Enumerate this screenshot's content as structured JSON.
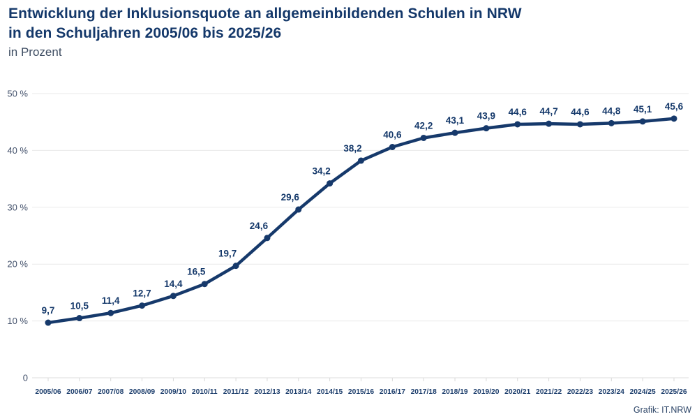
{
  "header": {
    "title_line1": "Entwicklung der Inklusionsquote an allgemeinbildenden Schulen in NRW",
    "title_line2": "in den Schuljahren 2005/06 bis 2025/26",
    "subtitle": "in Prozent"
  },
  "chart_data": {
    "type": "line",
    "title": "Entwicklung der Inklusionsquote an allgemeinbildenden Schulen in NRW in den Schuljahren 2005/06 bis 2025/26",
    "subtitle": "in Prozent",
    "categories": [
      "2005/06",
      "2006/07",
      "2007/08",
      "2008/09",
      "2009/10",
      "2010/11",
      "2011/12",
      "2012/13",
      "2013/14",
      "2014/15",
      "2015/16",
      "2016/17",
      "2017/18",
      "2018/19",
      "2019/20",
      "2020/21",
      "2021/22",
      "2022/23",
      "2023/24",
      "2024/25",
      "2025/26"
    ],
    "values": [
      9.7,
      10.5,
      11.4,
      12.7,
      14.4,
      16.5,
      19.7,
      24.6,
      29.6,
      34.2,
      38.2,
      40.6,
      42.2,
      43.1,
      43.9,
      44.6,
      44.7,
      44.6,
      44.8,
      45.1,
      45.6
    ],
    "decimal_separator": ",",
    "xlabel": "",
    "ylabel": "in Prozent",
    "ylim": [
      0,
      50
    ],
    "y_ticks": [
      {
        "value": 0,
        "label": "0"
      },
      {
        "value": 10,
        "label": "10 %"
      },
      {
        "value": 20,
        "label": "20 %"
      },
      {
        "value": 30,
        "label": "30 %"
      },
      {
        "value": 40,
        "label": "40 %"
      },
      {
        "value": 50,
        "label": "50 %"
      }
    ],
    "grid": true,
    "legend": false,
    "data_labels": true
  },
  "source": {
    "label": "Grafik: IT.NRW"
  },
  "colors": {
    "line": "#16396b",
    "marker": "#16396b",
    "data_label": "#14386a",
    "title": "#14386a",
    "subtitle_text": "#3f4e63",
    "y_axis_text": "#43516b",
    "x_axis_text": "#1e3f6d",
    "grid": "#e9e9e9",
    "zero_line": "#dcdcdc",
    "tick_mark": "#d9d9d9",
    "source_text": "#2e4668",
    "background": "#ffffff"
  }
}
